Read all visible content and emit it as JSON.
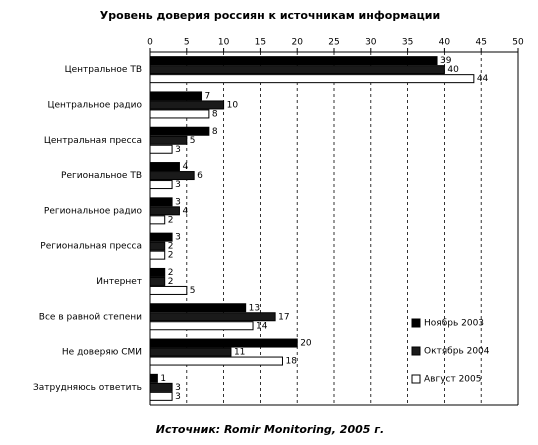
{
  "chart_data": {
    "type": "bar",
    "orientation": "horizontal",
    "title": "Уровень доверия россиян к источникам информации",
    "source": "Источник: Romir Monitoring, 2005 г.",
    "categories": [
      "Центральное ТВ",
      "Центральное радио",
      "Центральная пресса",
      "Региональное ТВ",
      "Региональное радио",
      "Региональная пресса",
      "Интернет",
      "Все в равной степени",
      "Не доверяю СМИ",
      "Затрудняюсь ответить"
    ],
    "series": [
      {
        "name": "Ноябрь 2003",
        "color": "#000000",
        "values": [
          39,
          7,
          8,
          4,
          3,
          3,
          2,
          13,
          20,
          1
        ]
      },
      {
        "name": "Октябрь 2004",
        "color": "#1a1a1a",
        "values": [
          40,
          10,
          5,
          6,
          4,
          2,
          2,
          17,
          11,
          3
        ]
      },
      {
        "name": "Август 2005",
        "color": "#ffffff",
        "values": [
          44,
          8,
          3,
          3,
          2,
          2,
          5,
          14,
          18,
          3
        ]
      }
    ],
    "xlim": [
      0,
      50
    ],
    "xticks": [
      0,
      5,
      10,
      15,
      20,
      25,
      30,
      35,
      40,
      45,
      50
    ],
    "grid": true,
    "legend_position": "lower right"
  }
}
